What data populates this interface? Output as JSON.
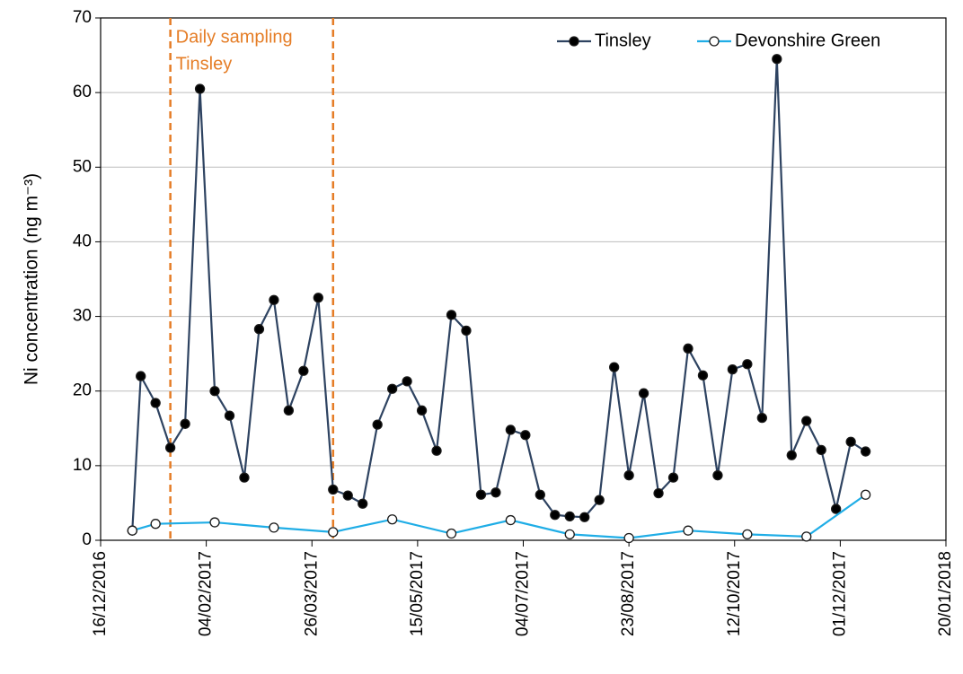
{
  "chart_data": {
    "type": "line",
    "y_label": "Ni concentration (ng m⁻³)",
    "series": [
      {
        "name": "Tinsley",
        "color": "#2e4361",
        "marker_fill": "#000000",
        "x": [
          "31/12/2016",
          "04/01/2017",
          "11/01/2017",
          "18/01/2017",
          "25/01/2017",
          "01/02/2017",
          "08/02/2017",
          "15/02/2017",
          "22/02/2017",
          "01/03/2017",
          "08/03/2017",
          "15/03/2017",
          "22/03/2017",
          "29/03/2017",
          "05/04/2017",
          "12/04/2017",
          "19/04/2017",
          "26/04/2017",
          "03/05/2017",
          "10/05/2017",
          "17/05/2017",
          "24/05/2017",
          "31/05/2017",
          "07/06/2017",
          "14/06/2017",
          "21/06/2017",
          "28/06/2017",
          "05/07/2017",
          "12/07/2017",
          "19/07/2017",
          "26/07/2017",
          "02/08/2017",
          "09/08/2017",
          "16/08/2017",
          "23/08/2017",
          "30/08/2017",
          "06/09/2017",
          "13/09/2017",
          "20/09/2017",
          "27/09/2017",
          "04/10/2017",
          "11/10/2017",
          "18/10/2017",
          "25/10/2017",
          "01/11/2017",
          "08/11/2017",
          "15/11/2017",
          "22/11/2017",
          "29/11/2017",
          "06/12/2017",
          "13/12/2017"
        ],
        "values": [
          1.3,
          22.0,
          18.4,
          12.4,
          15.6,
          60.5,
          20.0,
          16.7,
          8.4,
          28.3,
          32.2,
          17.4,
          22.7,
          32.5,
          6.8,
          6.0,
          4.9,
          15.5,
          20.3,
          21.3,
          17.4,
          12.0,
          30.2,
          28.1,
          6.1,
          6.4,
          14.8,
          14.1,
          6.1,
          3.4,
          3.2,
          3.1,
          5.4,
          23.2,
          8.7,
          19.7,
          6.3,
          8.4,
          25.7,
          22.1,
          8.7,
          22.9,
          23.6,
          16.4,
          64.5,
          11.4,
          16.0,
          12.1,
          4.2,
          13.2,
          11.9
        ]
      },
      {
        "name": "Devonshire Green",
        "color": "#1fadE6",
        "marker_fill": "#ffffff",
        "x": [
          "31/12/2016",
          "11/01/2017",
          "08/02/2017",
          "08/03/2017",
          "05/04/2017",
          "03/05/2017",
          "31/05/2017",
          "28/06/2017",
          "26/07/2017",
          "23/08/2017",
          "20/09/2017",
          "18/10/2017",
          "15/11/2017",
          "13/12/2017"
        ],
        "values": [
          1.3,
          2.2,
          2.4,
          1.7,
          1.1,
          2.8,
          0.9,
          2.7,
          0.8,
          0.3,
          1.3,
          0.8,
          0.5,
          6.1
        ]
      }
    ],
    "xlim": [
      "16/12/2016",
      "20/01/2018"
    ],
    "xticks": [
      "16/12/2016",
      "04/02/2017",
      "26/03/2017",
      "15/05/2017",
      "04/07/2017",
      "23/08/2017",
      "12/10/2017",
      "01/12/2017",
      "20/01/2018"
    ],
    "ylim": [
      0,
      70
    ],
    "yticks": [
      0,
      10,
      20,
      30,
      40,
      50,
      60,
      70
    ],
    "grid": true,
    "legend_position": "top-right",
    "annotation": {
      "text": [
        "Daily sampling",
        "Tinsley"
      ],
      "x_range": [
        "18/01/2017",
        "05/04/2017"
      ],
      "color": "#e57d26"
    }
  }
}
